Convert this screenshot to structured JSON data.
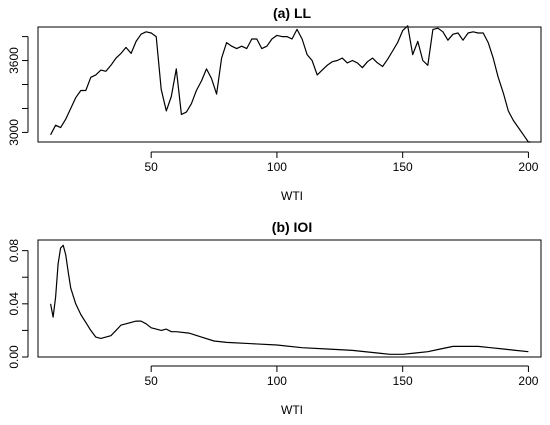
{
  "chart_data": [
    {
      "type": "line",
      "title": "(a) LL",
      "xlabel": "WTI",
      "ylabel": "",
      "xlim": [
        5,
        205
      ],
      "ylim": [
        2920,
        3880
      ],
      "xticks": [
        50,
        100,
        150,
        200
      ],
      "xtick_labels": [
        "50",
        "100",
        "150",
        "200"
      ],
      "yticks": [
        3000,
        3200,
        3400,
        3600,
        3800
      ],
      "ytick_labels": [
        "3000",
        "",
        "",
        "3600",
        ""
      ],
      "x": [
        10,
        12,
        14,
        16,
        18,
        20,
        22,
        24,
        26,
        28,
        30,
        32,
        34,
        36,
        38,
        40,
        42,
        44,
        46,
        48,
        50,
        52,
        54,
        56,
        58,
        60,
        62,
        64,
        66,
        68,
        70,
        72,
        74,
        76,
        78,
        80,
        82,
        84,
        86,
        88,
        90,
        92,
        94,
        96,
        98,
        100,
        102,
        104,
        106,
        108,
        110,
        112,
        114,
        116,
        118,
        120,
        122,
        124,
        126,
        128,
        130,
        132,
        134,
        136,
        138,
        140,
        142,
        144,
        146,
        148,
        150,
        152,
        154,
        156,
        158,
        160,
        162,
        164,
        166,
        168,
        170,
        172,
        174,
        176,
        178,
        180,
        182,
        184,
        186,
        188,
        190,
        192,
        194,
        196,
        198,
        200,
        201
      ],
      "values": [
        2980,
        3060,
        3040,
        3110,
        3200,
        3290,
        3350,
        3350,
        3460,
        3480,
        3520,
        3510,
        3560,
        3620,
        3660,
        3710,
        3660,
        3760,
        3820,
        3840,
        3830,
        3800,
        3360,
        3180,
        3300,
        3530,
        3150,
        3170,
        3240,
        3350,
        3430,
        3530,
        3450,
        3320,
        3620,
        3750,
        3720,
        3700,
        3720,
        3700,
        3780,
        3780,
        3700,
        3720,
        3780,
        3810,
        3800,
        3800,
        3780,
        3860,
        3780,
        3650,
        3600,
        3480,
        3520,
        3560,
        3590,
        3600,
        3620,
        3580,
        3600,
        3580,
        3540,
        3590,
        3620,
        3580,
        3550,
        3610,
        3680,
        3750,
        3850,
        3890,
        3650,
        3760,
        3600,
        3560,
        3860,
        3870,
        3840,
        3770,
        3820,
        3830,
        3770,
        3830,
        3840,
        3830,
        3830,
        3750,
        3620,
        3460,
        3330,
        3180,
        3100,
        3040,
        2980,
        2920,
        2920
      ]
    },
    {
      "type": "line",
      "title": "(b) IOI",
      "xlabel": "WTI",
      "ylabel": "",
      "xlim": [
        5,
        205
      ],
      "ylim": [
        0,
        0.088
      ],
      "xticks": [
        50,
        100,
        150,
        200
      ],
      "xtick_labels": [
        "50",
        "100",
        "150",
        "200"
      ],
      "yticks": [
        0.0,
        0.04,
        0.08
      ],
      "ytick_labels": [
        "0.00",
        "0.04",
        "0.08"
      ],
      "minor_yticks": [
        0.02,
        0.06
      ],
      "x": [
        10,
        11,
        12,
        13,
        14,
        15,
        16,
        17,
        18,
        20,
        22,
        24,
        26,
        28,
        30,
        32,
        34,
        36,
        38,
        40,
        42,
        44,
        46,
        48,
        50,
        52,
        54,
        56,
        58,
        60,
        65,
        70,
        75,
        80,
        90,
        100,
        110,
        120,
        130,
        140,
        145,
        150,
        155,
        160,
        165,
        170,
        175,
        180,
        185,
        190,
        195,
        200
      ],
      "values": [
        0.04,
        0.03,
        0.045,
        0.07,
        0.082,
        0.084,
        0.077,
        0.064,
        0.052,
        0.04,
        0.032,
        0.026,
        0.02,
        0.015,
        0.014,
        0.015,
        0.016,
        0.02,
        0.024,
        0.025,
        0.026,
        0.027,
        0.027,
        0.025,
        0.022,
        0.021,
        0.02,
        0.021,
        0.019,
        0.019,
        0.018,
        0.015,
        0.012,
        0.011,
        0.01,
        0.009,
        0.007,
        0.006,
        0.005,
        0.003,
        0.002,
        0.002,
        0.003,
        0.004,
        0.006,
        0.008,
        0.008,
        0.008,
        0.007,
        0.006,
        0.005,
        0.004
      ]
    }
  ]
}
